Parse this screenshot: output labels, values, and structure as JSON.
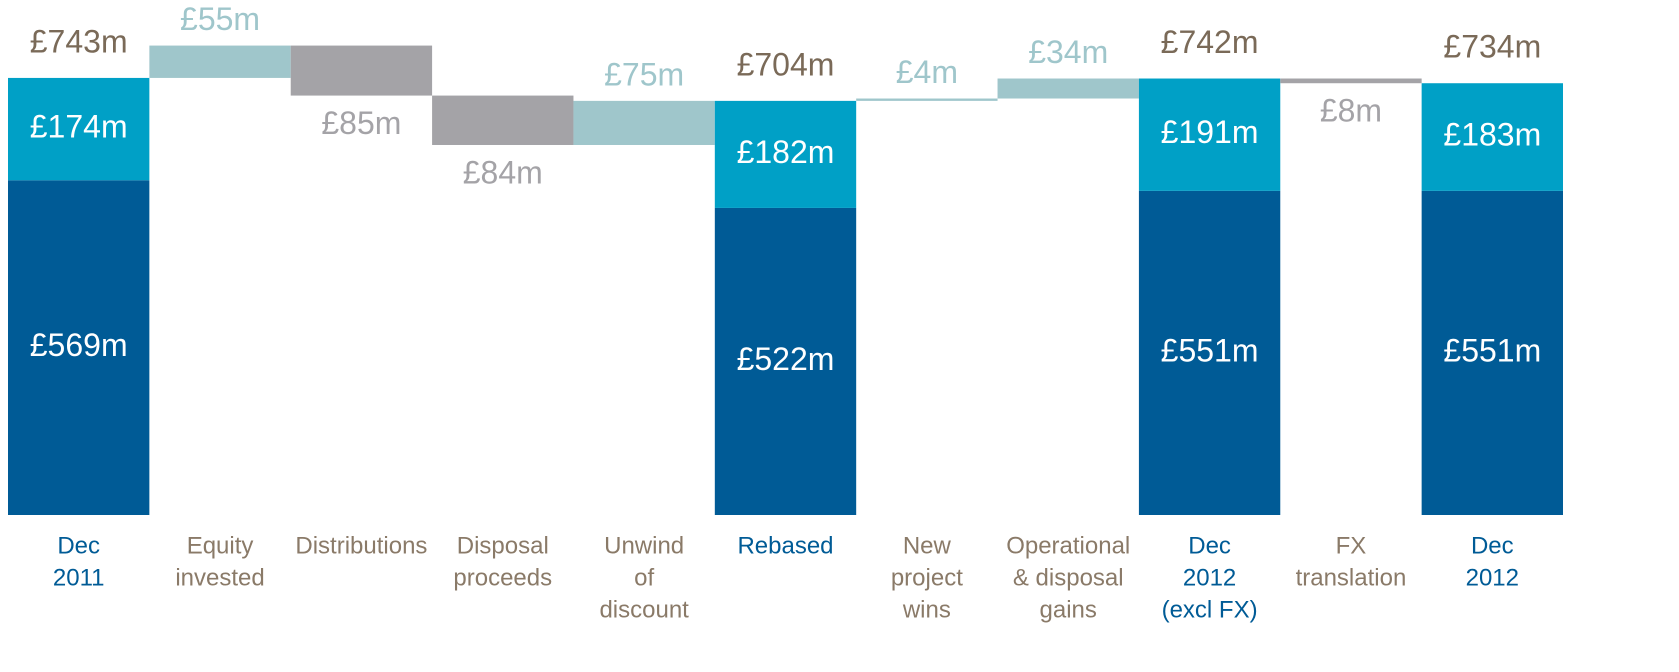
{
  "chart_data": {
    "type": "waterfall",
    "categories": [
      [
        "Dec",
        "2011"
      ],
      [
        "Equity",
        "invested"
      ],
      [
        "Distributions"
      ],
      [
        "Disposal",
        "proceeds"
      ],
      [
        "Unwind",
        "of",
        "discount"
      ],
      [
        "Rebased"
      ],
      [
        "New",
        "project",
        "wins"
      ],
      [
        "Operational",
        "& disposal",
        "gains"
      ],
      [
        "Dec",
        "2012",
        "(excl FX)"
      ],
      [
        "FX",
        "translation"
      ],
      [
        "Dec",
        "2012"
      ]
    ],
    "series": [
      {
        "color": "#005b96",
        "values": [
          569,
          null,
          null,
          null,
          null,
          522,
          null,
          null,
          551,
          null,
          551
        ],
        "value_labels": [
          "£569m",
          null,
          null,
          null,
          null,
          "£522m",
          null,
          null,
          "£551m",
          null,
          "£551m"
        ]
      },
      {
        "color": "#00a0c6",
        "values": [
          174,
          null,
          null,
          null,
          null,
          182,
          null,
          null,
          191,
          null,
          183
        ],
        "value_labels": [
          "£174m",
          null,
          null,
          null,
          null,
          "£182m",
          null,
          null,
          "£191m",
          null,
          "£183m"
        ]
      }
    ],
    "totals": {
      "values": [
        743,
        null,
        null,
        null,
        null,
        704,
        null,
        null,
        742,
        null,
        734
      ],
      "value_labels": [
        "£743m",
        null,
        null,
        null,
        null,
        "£704m",
        null,
        null,
        "£742m",
        null,
        "£734m"
      ],
      "color": "#7a6a58"
    },
    "changes": {
      "values": [
        null,
        55,
        -85,
        -84,
        75,
        null,
        4,
        34,
        null,
        -8,
        null
      ],
      "value_labels": [
        null,
        "£55m",
        "£85m",
        "£84m",
        "£75m",
        null,
        "£4m",
        "£34m",
        null,
        "£8m",
        null
      ],
      "up_color": "#9fc6cb",
      "down_color": "#a4a3a7"
    },
    "total_category_color": "#005b96",
    "change_category_color": "#8a7a68",
    "ylim": [
      0,
      800
    ]
  }
}
